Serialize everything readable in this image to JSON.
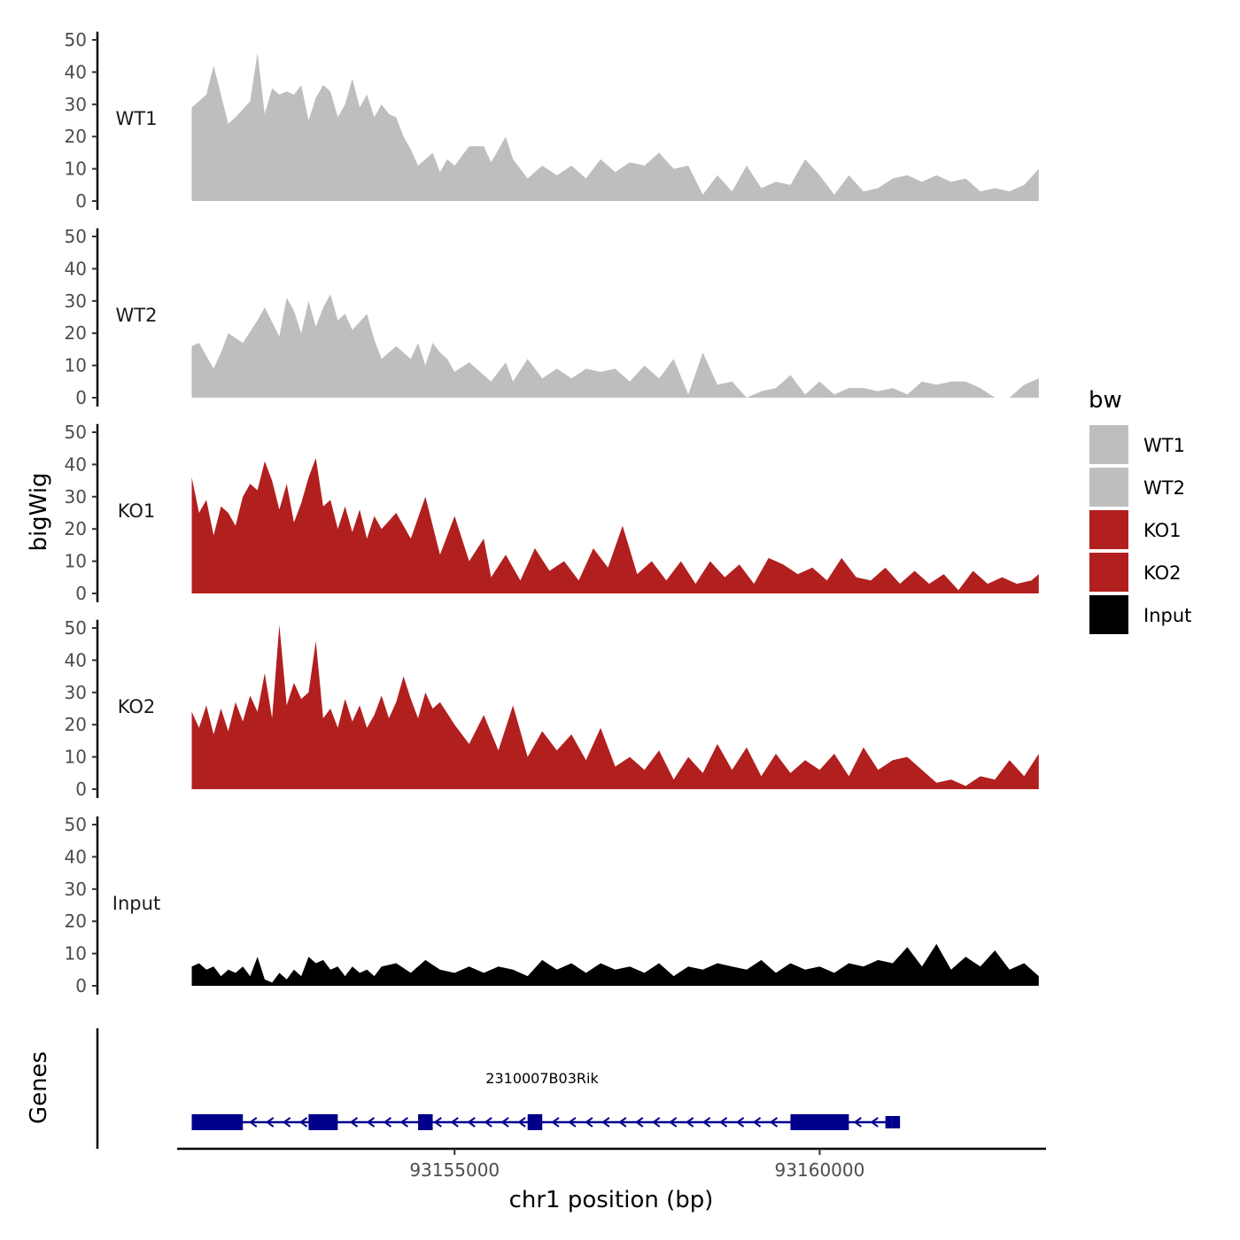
{
  "chart_data": {
    "type": "area",
    "title": "",
    "ylabel": "bigWig",
    "xlabel": "chr1 position (bp)",
    "xlim": [
      93151200,
      93163100
    ],
    "x_ticks": [
      93155000,
      93160000
    ],
    "x_tick_labels": [
      "93155000",
      "93160000"
    ],
    "ylim": [
      0,
      52
    ],
    "y_ticks": [
      0,
      10,
      20,
      30,
      40,
      50
    ],
    "y_tick_labels": [
      "0",
      "10",
      "20",
      "30",
      "40",
      "50"
    ],
    "grid": false,
    "legend": {
      "title": "bw",
      "position": "right",
      "entries": [
        {
          "name": "WT1",
          "color": "#bebebe"
        },
        {
          "name": "WT2",
          "color": "#bebebe"
        },
        {
          "name": "KO1",
          "color": "#b21f1f"
        },
        {
          "name": "KO2",
          "color": "#b21f1f"
        },
        {
          "name": "Input",
          "color": "#000000"
        }
      ]
    },
    "series": [
      {
        "name": "WT1",
        "color": "#bebebe",
        "x": [
          93151400,
          93151600,
          93151700,
          93151900,
          93152000,
          93152200,
          93152300,
          93152400,
          93152500,
          93152600,
          93152700,
          93152800,
          93152900,
          93153000,
          93153100,
          93153200,
          93153300,
          93153400,
          93153500,
          93153600,
          93153700,
          93153800,
          93153900,
          93154000,
          93154100,
          93154200,
          93154300,
          93154400,
          93154500,
          93154600,
          93154700,
          93154800,
          93154900,
          93155000,
          93155200,
          93155400,
          93155500,
          93155700,
          93155800,
          93156000,
          93156200,
          93156400,
          93156600,
          93156800,
          93157000,
          93157200,
          93157400,
          93157600,
          93157800,
          93158000,
          93158200,
          93158400,
          93158600,
          93158800,
          93159000,
          93159200,
          93159400,
          93159600,
          93159800,
          93160000,
          93160200,
          93160400,
          93160600,
          93160800,
          93161000,
          93161200,
          93161400,
          93161600,
          93161800,
          93162000,
          93162200,
          93162400,
          93162600,
          93162800,
          93163000
        ],
        "values": [
          29,
          33,
          42,
          24,
          26,
          31,
          46,
          27,
          35,
          33,
          34,
          33,
          36,
          25,
          32,
          36,
          34,
          26,
          30,
          38,
          29,
          33,
          26,
          30,
          27,
          26,
          20,
          16,
          11,
          13,
          15,
          9,
          13,
          11,
          17,
          17,
          12,
          20,
          13,
          7,
          11,
          8,
          11,
          7,
          13,
          9,
          12,
          11,
          15,
          10,
          11,
          2,
          8,
          3,
          11,
          4,
          6,
          5,
          13,
          8,
          2,
          8,
          3,
          4,
          7,
          8,
          6,
          8,
          6,
          7,
          3,
          4,
          3,
          5,
          10
        ]
      },
      {
        "name": "WT2",
        "color": "#bebebe",
        "x": [
          93151400,
          93151500,
          93151700,
          93151800,
          93151900,
          93152100,
          93152300,
          93152400,
          93152600,
          93152700,
          93152800,
          93152900,
          93153000,
          93153100,
          93153200,
          93153300,
          93153400,
          93153500,
          93153600,
          93153800,
          93153900,
          93154000,
          93154200,
          93154400,
          93154500,
          93154600,
          93154700,
          93154800,
          93154900,
          93155000,
          93155200,
          93155400,
          93155500,
          93155700,
          93155800,
          93156000,
          93156200,
          93156400,
          93156600,
          93156800,
          93157000,
          93157200,
          93157400,
          93157600,
          93157800,
          93158000,
          93158200,
          93158400,
          93158600,
          93158800,
          93159000,
          93159200,
          93159400,
          93159600,
          93159800,
          93160000,
          93160200,
          93160400,
          93160600,
          93160800,
          93161000,
          93161200,
          93161400,
          93161600,
          93161800,
          93162000,
          93162200,
          93162400,
          93162600,
          93162800,
          93163000
        ],
        "values": [
          16,
          17,
          9,
          14,
          20,
          17,
          24,
          28,
          19,
          31,
          27,
          20,
          30,
          22,
          28,
          32,
          24,
          26,
          21,
          26,
          18,
          12,
          16,
          12,
          17,
          10,
          17,
          14,
          12,
          8,
          11,
          7,
          5,
          11,
          5,
          12,
          6,
          9,
          6,
          9,
          8,
          9,
          5,
          10,
          6,
          12,
          1,
          14,
          4,
          5,
          0,
          2,
          3,
          7,
          1,
          5,
          1,
          3,
          3,
          2,
          3,
          1,
          5,
          4,
          5,
          5,
          3,
          0,
          0,
          4,
          6
        ]
      },
      {
        "name": "KO1",
        "color": "#b21f1f",
        "x": [
          93151400,
          93151500,
          93151600,
          93151700,
          93151800,
          93151900,
          93152000,
          93152100,
          93152200,
          93152300,
          93152400,
          93152500,
          93152600,
          93152700,
          93152800,
          93152900,
          93153000,
          93153100,
          93153200,
          93153300,
          93153400,
          93153500,
          93153600,
          93153700,
          93153800,
          93153900,
          93154000,
          93154200,
          93154400,
          93154600,
          93154800,
          93155000,
          93155200,
          93155400,
          93155500,
          93155700,
          93155900,
          93156100,
          93156300,
          93156500,
          93156700,
          93156900,
          93157100,
          93157300,
          93157500,
          93157700,
          93157900,
          93158100,
          93158300,
          93158500,
          93158700,
          93158900,
          93159100,
          93159300,
          93159500,
          93159700,
          93159900,
          93160100,
          93160300,
          93160500,
          93160700,
          93160900,
          93161100,
          93161300,
          93161500,
          93161700,
          93161900,
          93162100,
          93162300,
          93162500,
          93162700,
          93162900,
          93163000
        ],
        "values": [
          36,
          25,
          29,
          18,
          27,
          25,
          21,
          30,
          34,
          32,
          41,
          35,
          26,
          34,
          22,
          28,
          36,
          42,
          27,
          29,
          20,
          27,
          19,
          26,
          17,
          24,
          20,
          25,
          17,
          30,
          12,
          24,
          10,
          17,
          5,
          12,
          4,
          14,
          7,
          10,
          4,
          14,
          8,
          21,
          6,
          10,
          4,
          10,
          3,
          10,
          5,
          9,
          3,
          11,
          9,
          6,
          8,
          4,
          11,
          5,
          4,
          8,
          3,
          7,
          3,
          6,
          1,
          7,
          3,
          5,
          3,
          4,
          6
        ]
      },
      {
        "name": "KO2",
        "color": "#b21f1f",
        "x": [
          93151400,
          93151500,
          93151600,
          93151700,
          93151800,
          93151900,
          93152000,
          93152100,
          93152200,
          93152300,
          93152400,
          93152500,
          93152600,
          93152700,
          93152800,
          93152900,
          93153000,
          93153100,
          93153200,
          93153300,
          93153400,
          93153500,
          93153600,
          93153700,
          93153800,
          93153900,
          93154000,
          93154100,
          93154200,
          93154300,
          93154400,
          93154500,
          93154600,
          93154700,
          93154800,
          93155000,
          93155200,
          93155400,
          93155600,
          93155800,
          93156000,
          93156200,
          93156400,
          93156600,
          93156800,
          93157000,
          93157200,
          93157400,
          93157600,
          93157800,
          93158000,
          93158200,
          93158400,
          93158600,
          93158800,
          93159000,
          93159200,
          93159400,
          93159600,
          93159800,
          93160000,
          93160200,
          93160400,
          93160600,
          93160800,
          93161000,
          93161200,
          93161400,
          93161600,
          93161800,
          93162000,
          93162200,
          93162400,
          93162600,
          93162800,
          93163000
        ],
        "values": [
          24,
          19,
          26,
          17,
          25,
          18,
          27,
          21,
          29,
          24,
          36,
          22,
          51,
          26,
          33,
          28,
          30,
          46,
          22,
          25,
          19,
          28,
          21,
          26,
          19,
          23,
          29,
          22,
          27,
          35,
          28,
          22,
          30,
          25,
          27,
          20,
          14,
          23,
          12,
          26,
          10,
          18,
          12,
          17,
          9,
          19,
          7,
          10,
          6,
          12,
          3,
          10,
          5,
          14,
          6,
          13,
          4,
          11,
          5,
          9,
          6,
          11,
          4,
          13,
          6,
          9,
          10,
          6,
          2,
          3,
          1,
          4,
          3,
          9,
          4,
          11
        ]
      },
      {
        "name": "Input",
        "color": "#000000",
        "x": [
          93151400,
          93151500,
          93151600,
          93151700,
          93151800,
          93151900,
          93152000,
          93152100,
          93152200,
          93152300,
          93152400,
          93152500,
          93152600,
          93152700,
          93152800,
          93152900,
          93153000,
          93153100,
          93153200,
          93153300,
          93153400,
          93153500,
          93153600,
          93153700,
          93153800,
          93153900,
          93154000,
          93154200,
          93154400,
          93154600,
          93154800,
          93155000,
          93155200,
          93155400,
          93155600,
          93155800,
          93156000,
          93156200,
          93156400,
          93156600,
          93156800,
          93157000,
          93157200,
          93157400,
          93157600,
          93157800,
          93158000,
          93158200,
          93158400,
          93158600,
          93158800,
          93159000,
          93159200,
          93159400,
          93159600,
          93159800,
          93160000,
          93160200,
          93160400,
          93160600,
          93160800,
          93161000,
          93161200,
          93161400,
          93161600,
          93161800,
          93162000,
          93162200,
          93162400,
          93162600,
          93162800,
          93163000
        ],
        "values": [
          6,
          7,
          5,
          6,
          3,
          5,
          4,
          6,
          3,
          9,
          2,
          1,
          4,
          2,
          5,
          3,
          9,
          7,
          8,
          5,
          6,
          3,
          6,
          4,
          5,
          3,
          6,
          7,
          4,
          8,
          5,
          4,
          6,
          4,
          6,
          5,
          3,
          8,
          5,
          7,
          4,
          7,
          5,
          6,
          4,
          7,
          3,
          6,
          5,
          7,
          6,
          5,
          8,
          4,
          7,
          5,
          6,
          4,
          7,
          6,
          8,
          7,
          12,
          6,
          13,
          5,
          9,
          6,
          11,
          5,
          7,
          3
        ]
      }
    ],
    "gene_track": {
      "ylabel": "Genes",
      "gene_name": "2310007B03Rik",
      "strand": "-",
      "start": 93151400,
      "end": 93161100,
      "exons": [
        [
          93151400,
          93152100
        ],
        [
          93153000,
          93153400
        ],
        [
          93154500,
          93154700
        ],
        [
          93156000,
          93156200
        ],
        [
          93159600,
          93160400
        ],
        [
          93160900,
          93161000
        ],
        [
          93161000,
          93161100
        ]
      ]
    }
  }
}
